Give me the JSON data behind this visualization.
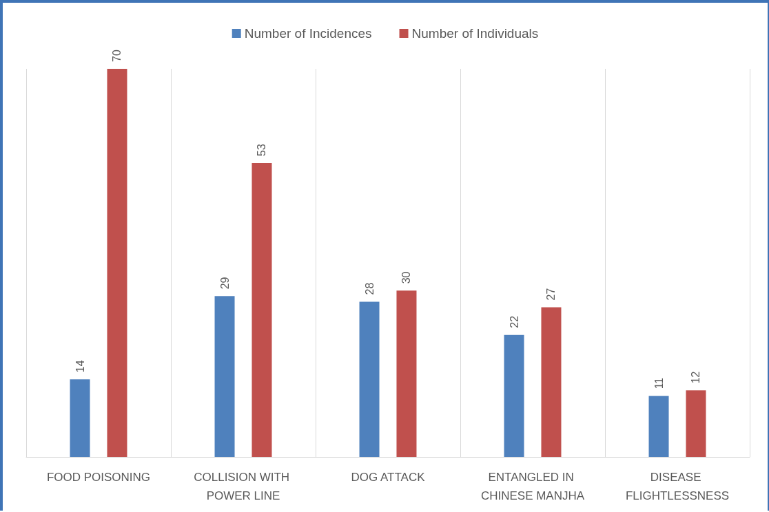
{
  "chart_data": {
    "type": "bar",
    "categories": [
      "FOOD POISONING",
      "COLLISION WITH POWER LINE",
      "DOG ATTACK",
      "ENTANGLED IN CHINESE MANJHA",
      "DISEASE FLIGHTLESSNESS"
    ],
    "series": [
      {
        "name": "Number of Incidences",
        "color": "#4f81bd",
        "values": [
          14,
          29,
          28,
          22,
          11
        ]
      },
      {
        "name": "Number of Individuals",
        "color": "#c0504d",
        "values": [
          70,
          53,
          30,
          27,
          12
        ]
      }
    ],
    "data_labels": true,
    "grid": "x",
    "legend": "top"
  }
}
